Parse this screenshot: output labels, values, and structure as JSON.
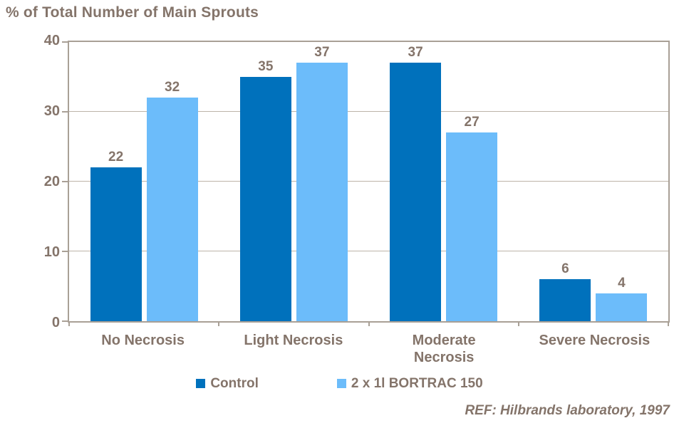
{
  "title": "% of Total Number of Main Sprouts",
  "footnote": "REF: Hilbrands laboratory, 1997",
  "colors": {
    "text": "#84746A",
    "axis_border": "#A9A096",
    "gridline": "#BDB4A9",
    "control_bar": "#0071BC",
    "bortrac_bar": "#6CBCFA",
    "background": "#FFFFFF"
  },
  "chart_data": {
    "type": "bar",
    "title": "% of Total Number of Main Sprouts",
    "categories": [
      "No Necrosis",
      "Light Necrosis",
      "Moderate\nNecrosis",
      "Severe Necrosis"
    ],
    "series": [
      {
        "name": "Control",
        "color": "#0071BC",
        "values": [
          22,
          35,
          37,
          6
        ]
      },
      {
        "name": "2 x 1l BORTRAC 150",
        "color": "#6CBCFA",
        "values": [
          32,
          37,
          27,
          4
        ]
      }
    ],
    "xlabel": "",
    "ylabel": "",
    "ylim": [
      0,
      40
    ],
    "yticks": [
      0,
      10,
      20,
      30,
      40
    ],
    "grid": true,
    "data_labels": true,
    "legend_position": "bottom",
    "footnote": "REF: Hilbrands laboratory, 1997"
  }
}
